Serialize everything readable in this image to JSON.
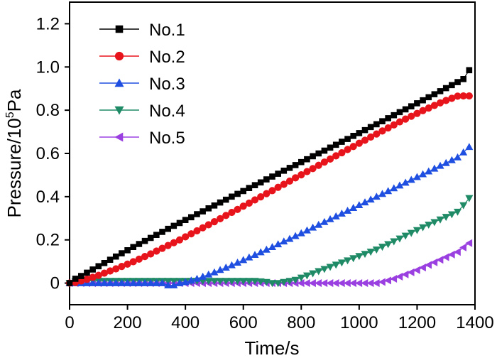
{
  "chart_data": {
    "type": "scatter",
    "xlabel": "Time/s",
    "ylabel_main": "Pressure/10",
    "ylabel_sup": "5",
    "ylabel_unit": "Pa",
    "xlim": [
      0,
      1400
    ],
    "ylim": [
      -0.1,
      1.3
    ],
    "xticks": [
      0,
      200,
      400,
      600,
      800,
      1000,
      1200,
      1400
    ],
    "xtick_labels": [
      "0",
      "200",
      "400",
      "600",
      "800",
      "1000",
      "1200",
      "1400"
    ],
    "yticks": [
      0,
      0.2,
      0.4,
      0.6,
      0.8,
      1.0,
      1.2
    ],
    "ytick_labels": [
      "0",
      "0.2",
      "0.4",
      "0.6",
      "0.8",
      "1.0",
      "1.2"
    ],
    "grid": false,
    "legend_position": "top-left",
    "series": [
      {
        "name": "No.1",
        "color": "#000000",
        "marker": "square",
        "x": [
          0,
          20,
          40,
          60,
          80,
          100,
          120,
          140,
          160,
          180,
          200,
          220,
          240,
          260,
          280,
          300,
          320,
          340,
          360,
          380,
          400,
          420,
          440,
          460,
          480,
          500,
          520,
          540,
          560,
          580,
          600,
          620,
          640,
          660,
          680,
          700,
          720,
          740,
          760,
          780,
          800,
          820,
          840,
          860,
          880,
          900,
          920,
          940,
          960,
          980,
          1000,
          1020,
          1040,
          1060,
          1080,
          1100,
          1120,
          1140,
          1160,
          1180,
          1200,
          1220,
          1240,
          1260,
          1280,
          1300,
          1320,
          1340,
          1360,
          1380
        ],
        "y": [
          0.0,
          0.02,
          0.033,
          0.048,
          0.063,
          0.078,
          0.093,
          0.108,
          0.123,
          0.138,
          0.152,
          0.167,
          0.181,
          0.195,
          0.209,
          0.223,
          0.237,
          0.251,
          0.265,
          0.278,
          0.292,
          0.305,
          0.319,
          0.332,
          0.346,
          0.359,
          0.373,
          0.386,
          0.4,
          0.413,
          0.426,
          0.44,
          0.453,
          0.466,
          0.48,
          0.493,
          0.506,
          0.52,
          0.533,
          0.546,
          0.56,
          0.573,
          0.587,
          0.6,
          0.613,
          0.627,
          0.64,
          0.654,
          0.667,
          0.681,
          0.694,
          0.708,
          0.722,
          0.735,
          0.749,
          0.763,
          0.777,
          0.791,
          0.804,
          0.818,
          0.832,
          0.846,
          0.86,
          0.874,
          0.888,
          0.902,
          0.916,
          0.93,
          0.944,
          0.985
        ]
      },
      {
        "name": "No.2",
        "color": "#e8141c",
        "marker": "circle",
        "x": [
          0,
          20,
          40,
          60,
          80,
          100,
          120,
          140,
          160,
          180,
          200,
          220,
          240,
          260,
          280,
          300,
          320,
          340,
          360,
          380,
          400,
          420,
          440,
          460,
          480,
          500,
          520,
          540,
          560,
          580,
          600,
          620,
          640,
          660,
          680,
          700,
          720,
          740,
          760,
          780,
          800,
          820,
          840,
          860,
          880,
          900,
          920,
          940,
          960,
          980,
          1000,
          1020,
          1040,
          1060,
          1080,
          1100,
          1120,
          1140,
          1160,
          1180,
          1200,
          1220,
          1240,
          1260,
          1280,
          1300,
          1320,
          1340,
          1360,
          1380
        ],
        "y": [
          0.0,
          0.003,
          0.01,
          0.018,
          0.027,
          0.036,
          0.046,
          0.056,
          0.066,
          0.077,
          0.088,
          0.099,
          0.111,
          0.123,
          0.135,
          0.148,
          0.161,
          0.174,
          0.187,
          0.2,
          0.214,
          0.228,
          0.242,
          0.256,
          0.27,
          0.284,
          0.298,
          0.313,
          0.327,
          0.341,
          0.356,
          0.37,
          0.385,
          0.399,
          0.414,
          0.428,
          0.443,
          0.457,
          0.472,
          0.487,
          0.501,
          0.516,
          0.53,
          0.545,
          0.56,
          0.574,
          0.589,
          0.603,
          0.618,
          0.632,
          0.647,
          0.661,
          0.676,
          0.69,
          0.704,
          0.718,
          0.732,
          0.746,
          0.759,
          0.772,
          0.785,
          0.798,
          0.81,
          0.822,
          0.834,
          0.845,
          0.855,
          0.865,
          0.866,
          0.866
        ]
      },
      {
        "name": "No.3",
        "color": "#1f4fe0",
        "marker": "triangle-up",
        "x": [
          0,
          20,
          40,
          60,
          80,
          100,
          120,
          140,
          160,
          180,
          200,
          220,
          240,
          260,
          280,
          300,
          320,
          340,
          360,
          380,
          400,
          420,
          440,
          460,
          480,
          500,
          520,
          540,
          560,
          580,
          600,
          620,
          640,
          660,
          680,
          700,
          720,
          740,
          760,
          780,
          800,
          820,
          840,
          860,
          880,
          900,
          920,
          940,
          960,
          980,
          1000,
          1020,
          1040,
          1060,
          1080,
          1100,
          1120,
          1140,
          1160,
          1180,
          1200,
          1220,
          1240,
          1260,
          1280,
          1300,
          1320,
          1340,
          1360,
          1380
        ],
        "y": [
          0.0,
          0.0,
          0.0,
          0.0,
          0.0,
          0.0,
          0.0,
          0.0,
          0.0,
          0.0,
          0.0,
          0.0,
          0.0,
          0.0,
          0.0,
          0.0,
          0.0,
          -0.01,
          -0.01,
          0.0,
          0.005,
          0.012,
          0.02,
          0.03,
          0.04,
          0.05,
          0.061,
          0.072,
          0.083,
          0.095,
          0.107,
          0.119,
          0.131,
          0.143,
          0.155,
          0.167,
          0.18,
          0.193,
          0.205,
          0.218,
          0.231,
          0.244,
          0.257,
          0.27,
          0.283,
          0.296,
          0.309,
          0.322,
          0.335,
          0.348,
          0.361,
          0.374,
          0.387,
          0.4,
          0.413,
          0.426,
          0.439,
          0.452,
          0.465,
          0.478,
          0.491,
          0.504,
          0.517,
          0.53,
          0.543,
          0.556,
          0.569,
          0.582,
          0.605,
          0.63
        ]
      },
      {
        "name": "No.4",
        "color": "#1f8a66",
        "marker": "triangle-down",
        "x": [
          0,
          20,
          40,
          60,
          80,
          100,
          120,
          140,
          160,
          180,
          200,
          220,
          240,
          260,
          280,
          300,
          320,
          340,
          360,
          380,
          400,
          420,
          440,
          460,
          480,
          500,
          520,
          540,
          560,
          580,
          600,
          620,
          640,
          660,
          680,
          700,
          720,
          740,
          760,
          780,
          800,
          820,
          840,
          860,
          880,
          900,
          920,
          940,
          960,
          980,
          1000,
          1020,
          1040,
          1060,
          1080,
          1100,
          1120,
          1140,
          1160,
          1180,
          1200,
          1220,
          1240,
          1260,
          1280,
          1300,
          1320,
          1340,
          1360,
          1380
        ],
        "y": [
          0.0,
          0.008,
          0.01,
          0.01,
          0.01,
          0.01,
          0.01,
          0.01,
          0.01,
          0.01,
          0.01,
          0.01,
          0.01,
          0.01,
          0.01,
          0.01,
          0.01,
          0.01,
          0.01,
          0.01,
          0.01,
          0.01,
          0.01,
          0.01,
          0.01,
          0.01,
          0.01,
          0.01,
          0.01,
          0.01,
          0.01,
          0.01,
          0.01,
          0.008,
          0.005,
          0.0,
          0.0,
          0.005,
          0.01,
          0.015,
          0.025,
          0.035,
          0.045,
          0.055,
          0.065,
          0.075,
          0.085,
          0.095,
          0.105,
          0.115,
          0.125,
          0.135,
          0.145,
          0.155,
          0.168,
          0.18,
          0.193,
          0.206,
          0.219,
          0.232,
          0.245,
          0.258,
          0.27,
          0.282,
          0.294,
          0.306,
          0.318,
          0.33,
          0.36,
          0.393
        ]
      },
      {
        "name": "No.5",
        "color": "#9b40e0",
        "marker": "triangle-left",
        "x": [
          0,
          20,
          40,
          60,
          80,
          100,
          120,
          140,
          160,
          180,
          200,
          220,
          240,
          260,
          280,
          300,
          320,
          340,
          360,
          380,
          400,
          420,
          440,
          460,
          480,
          500,
          520,
          540,
          560,
          580,
          600,
          620,
          640,
          660,
          680,
          700,
          720,
          740,
          760,
          780,
          800,
          820,
          840,
          860,
          880,
          900,
          920,
          940,
          960,
          980,
          1000,
          1020,
          1040,
          1060,
          1080,
          1100,
          1120,
          1140,
          1160,
          1180,
          1200,
          1220,
          1240,
          1260,
          1280,
          1300,
          1320,
          1340,
          1360,
          1380
        ],
        "y": [
          0.0,
          0.0,
          0.0,
          0.0,
          0.0,
          0.0,
          0.0,
          0.0,
          0.0,
          0.0,
          0.0,
          0.0,
          0.0,
          0.0,
          0.0,
          0.0,
          0.0,
          0.0,
          0.0,
          0.0,
          0.0,
          0.0,
          0.0,
          0.0,
          0.0,
          0.0,
          0.0,
          0.0,
          0.0,
          0.0,
          0.0,
          0.0,
          0.0,
          0.0,
          0.0,
          0.0,
          0.0,
          0.0,
          0.0,
          0.0,
          0.0,
          0.0,
          0.0,
          0.0,
          0.0,
          0.0,
          0.0,
          0.0,
          0.0,
          0.0,
          0.0,
          0.0,
          0.0,
          0.0,
          0.005,
          0.012,
          0.02,
          0.03,
          0.04,
          0.05,
          0.06,
          0.072,
          0.084,
          0.096,
          0.108,
          0.12,
          0.132,
          0.144,
          0.165,
          0.185
        ]
      }
    ]
  }
}
